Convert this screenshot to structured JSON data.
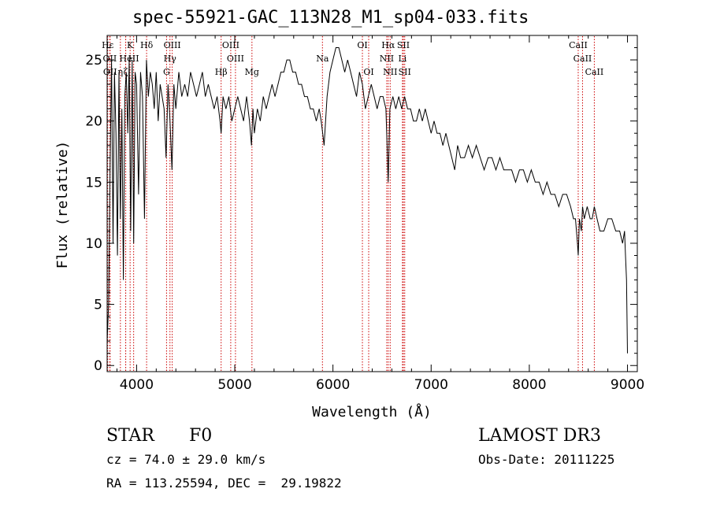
{
  "chart_data": {
    "type": "line",
    "title": "spec-55921-GAC_113N28_M1_sp04-033.fits",
    "xlabel": "Wavelength (Å)",
    "ylabel": "Flux (relative)",
    "xlim": [
      3700,
      9100
    ],
    "ylim": [
      -0.5,
      27
    ],
    "x_ticks": [
      4000,
      5000,
      6000,
      7000,
      8000,
      9000
    ],
    "y_ticks": [
      0,
      5,
      10,
      15,
      20,
      25
    ],
    "line_color": "#000000",
    "marker_color": "#cc0000",
    "series": [
      {
        "name": "spectrum",
        "x": [
          3700,
          3715,
          3730,
          3745,
          3760,
          3775,
          3790,
          3805,
          3820,
          3835,
          3850,
          3865,
          3880,
          3895,
          3910,
          3925,
          3940,
          3955,
          3970,
          3985,
          4000,
          4020,
          4040,
          4060,
          4080,
          4100,
          4120,
          4140,
          4160,
          4180,
          4200,
          4220,
          4240,
          4260,
          4280,
          4300,
          4320,
          4340,
          4360,
          4380,
          4400,
          4430,
          4460,
          4490,
          4520,
          4550,
          4580,
          4610,
          4640,
          4670,
          4700,
          4730,
          4760,
          4790,
          4820,
          4850,
          4861,
          4880,
          4910,
          4940,
          4970,
          5000,
          5030,
          5060,
          5090,
          5120,
          5150,
          5170,
          5185,
          5200,
          5230,
          5260,
          5290,
          5320,
          5350,
          5380,
          5410,
          5440,
          5470,
          5500,
          5530,
          5560,
          5590,
          5620,
          5650,
          5680,
          5710,
          5740,
          5770,
          5800,
          5830,
          5860,
          5880,
          5895,
          5910,
          5940,
          5970,
          6000,
          6030,
          6060,
          6090,
          6120,
          6150,
          6180,
          6210,
          6240,
          6270,
          6300,
          6330,
          6360,
          6390,
          6420,
          6450,
          6480,
          6510,
          6540,
          6563,
          6580,
          6610,
          6640,
          6670,
          6700,
          6730,
          6760,
          6790,
          6820,
          6850,
          6880,
          6910,
          6940,
          6970,
          7000,
          7030,
          7060,
          7090,
          7120,
          7150,
          7180,
          7210,
          7240,
          7270,
          7300,
          7340,
          7380,
          7420,
          7460,
          7500,
          7540,
          7580,
          7620,
          7660,
          7700,
          7740,
          7780,
          7820,
          7860,
          7900,
          7940,
          7980,
          8020,
          8060,
          8100,
          8140,
          8180,
          8220,
          8260,
          8300,
          8340,
          8380,
          8420,
          8450,
          8470,
          8490,
          8498,
          8510,
          8530,
          8542,
          8560,
          8590,
          8620,
          8640,
          8662,
          8690,
          8720,
          8760,
          8800,
          8840,
          8880,
          8920,
          8950,
          8970,
          8980,
          8990,
          9000
        ],
        "y": [
          2,
          5,
          16,
          25,
          10,
          24,
          19,
          9,
          24,
          12,
          21,
          7,
          22,
          24,
          19,
          25,
          11,
          25,
          10,
          24,
          23,
          14,
          24,
          22,
          12,
          25,
          22,
          24,
          23,
          21,
          24,
          20,
          23,
          22,
          21,
          17,
          23,
          20,
          16,
          23,
          21,
          24,
          22,
          23,
          22,
          24,
          23,
          22,
          23,
          24,
          22,
          23,
          22,
          21,
          22,
          20,
          19,
          22,
          21,
          22,
          20,
          21,
          22,
          21,
          20,
          22,
          20,
          18,
          21,
          19,
          21,
          20,
          22,
          21,
          22,
          23,
          22,
          23,
          24,
          24,
          25,
          25,
          24,
          24,
          23,
          23,
          22,
          22,
          21,
          21,
          20,
          21,
          20,
          19,
          18,
          22,
          24,
          25,
          26,
          26,
          25,
          24,
          25,
          24,
          23,
          22,
          24,
          23,
          21,
          22,
          23,
          22,
          21,
          22,
          22,
          21,
          15,
          21,
          22,
          21,
          22,
          21,
          22,
          21,
          21,
          20,
          20,
          21,
          20,
          21,
          20,
          19,
          20,
          19,
          19,
          18,
          19,
          18,
          17,
          16,
          18,
          17,
          17,
          18,
          17,
          18,
          17,
          16,
          17,
          17,
          16,
          17,
          16,
          16,
          16,
          15,
          16,
          16,
          15,
          16,
          15,
          15,
          14,
          15,
          14,
          14,
          13,
          14,
          14,
          13,
          12,
          12,
          10,
          9,
          12,
          11,
          13,
          12,
          13,
          12,
          12,
          13,
          12,
          11,
          11,
          12,
          12,
          11,
          11,
          10,
          11,
          9,
          7,
          1
        ]
      }
    ],
    "line_markers": [
      {
        "label": "Hε",
        "x": 3706,
        "row": 0
      },
      {
        "label": "K",
        "x": 3934,
        "row": 0
      },
      {
        "label": "Hδ",
        "x": 4102,
        "row": 0
      },
      {
        "label": "OIII",
        "x": 4363,
        "row": 0
      },
      {
        "label": "OIII",
        "x": 4959,
        "row": 0
      },
      {
        "label": "OI",
        "x": 6300,
        "row": 0
      },
      {
        "label": "Hα",
        "x": 6563,
        "row": 0
      },
      {
        "label": "SII",
        "x": 6717,
        "row": 0
      },
      {
        "label": "CaII",
        "x": 8498,
        "row": 0
      },
      {
        "label": "OII",
        "x": 3727,
        "row": 1
      },
      {
        "label": "He",
        "x": 3889,
        "row": 1
      },
      {
        "label": "HI",
        "x": 3970,
        "row": 1
      },
      {
        "label": "Hγ",
        "x": 4340,
        "row": 1
      },
      {
        "label": "OIII",
        "x": 5007,
        "row": 1
      },
      {
        "label": "Na",
        "x": 5893,
        "row": 1
      },
      {
        "label": "NII",
        "x": 6548,
        "row": 1
      },
      {
        "label": "Li",
        "x": 6708,
        "row": 1
      },
      {
        "label": "CaII",
        "x": 8542,
        "row": 1
      },
      {
        "label": "OII",
        "x": 3730,
        "row": 2
      },
      {
        "label": "η",
        "x": 3835,
        "row": 2
      },
      {
        "label": "ζ",
        "x": 3889,
        "row": 2
      },
      {
        "label": "G",
        "x": 4305,
        "row": 2
      },
      {
        "label": "Hβ",
        "x": 4861,
        "row": 2
      },
      {
        "label": "Mg",
        "x": 5175,
        "row": 2
      },
      {
        "label": "OI",
        "x": 6364,
        "row": 2
      },
      {
        "label": "NII",
        "x": 6583,
        "row": 2
      },
      {
        "label": "SII",
        "x": 6731,
        "row": 2
      },
      {
        "label": "CaII",
        "x": 8662,
        "row": 2
      }
    ]
  },
  "info": {
    "class": "STAR",
    "subclass": "F0",
    "survey": "LAMOST DR3",
    "cz": "cz = 74.0 ± 29.0 km/s",
    "obs_date": "Obs-Date: 20111225",
    "coords": "RA = 113.25594, DEC =  29.19822"
  }
}
